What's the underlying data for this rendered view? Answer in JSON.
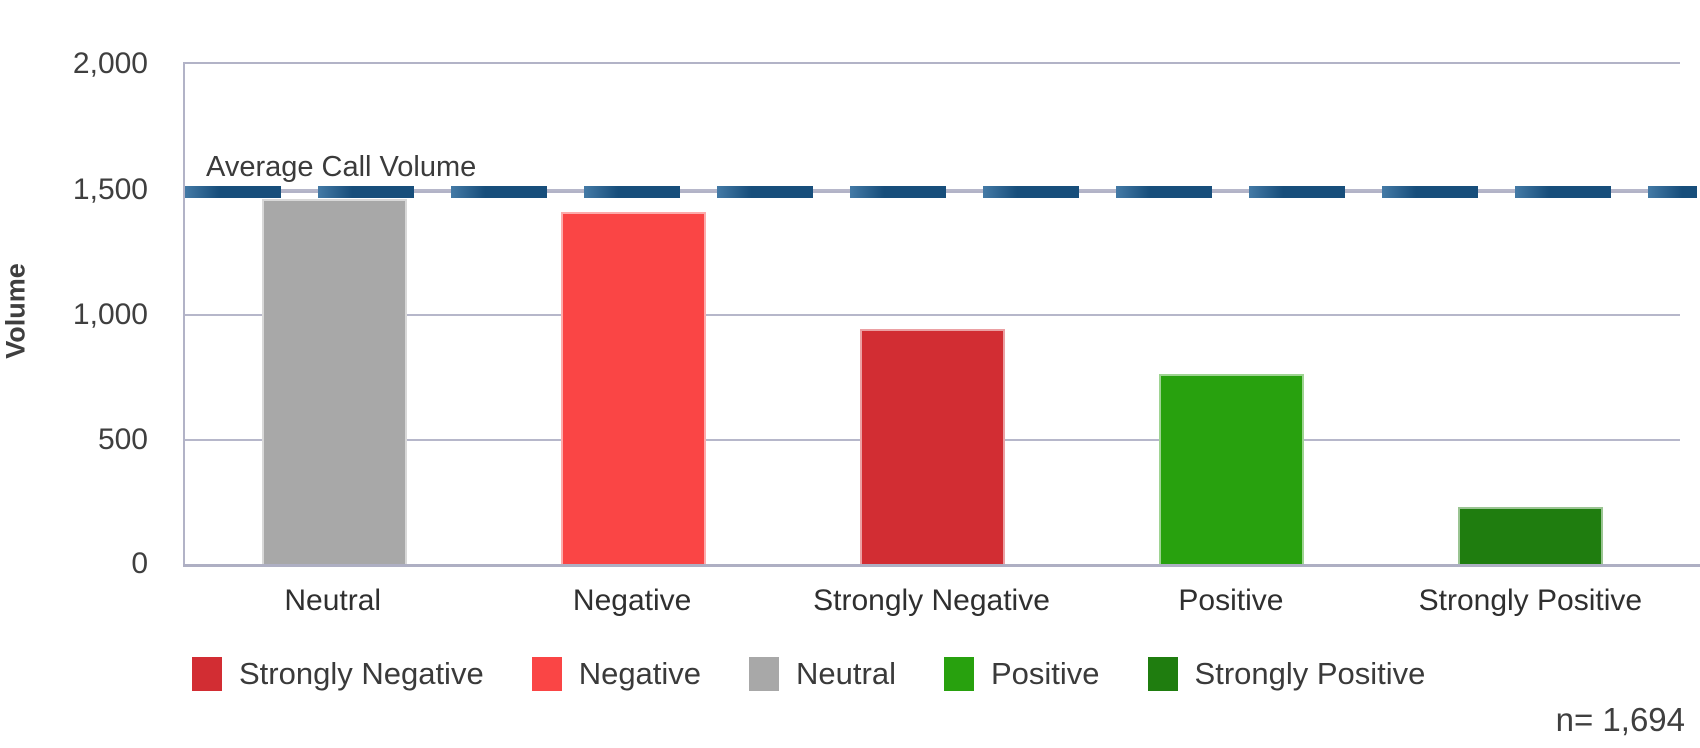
{
  "chart_data": {
    "type": "bar",
    "ylabel": "Volume",
    "categories": [
      "Neutral",
      "Negative",
      "Strongly Negative",
      "Positive",
      "Strongly Positive"
    ],
    "values": [
      1460,
      1410,
      940,
      760,
      230
    ],
    "bar_colors": [
      "#a8a8a8",
      "#fa4545",
      "#d22d33",
      "#28a10e",
      "#1f7d0f"
    ],
    "ylim": [
      0,
      2000
    ],
    "ytick_labels_top_down": [
      "2,000",
      "1,500",
      "1,000",
      "500",
      "0"
    ],
    "grid": "horizontal lines every 500",
    "reference_line": {
      "label": "Average Call Volume",
      "value": 1490,
      "style": "dashed",
      "color": "#174e7b",
      "color_light": "#447aa6"
    },
    "legend_position": "bottom",
    "legend": [
      {
        "label": "Strongly Negative",
        "color": "#d22d33"
      },
      {
        "label": "Negative",
        "color": "#fa4545"
      },
      {
        "label": "Neutral",
        "color": "#a8a8a8"
      },
      {
        "label": "Positive",
        "color": "#28a10e"
      },
      {
        "label": "Strongly Positive",
        "color": "#1f7d0f"
      }
    ],
    "annotation": "n= 1,694"
  }
}
